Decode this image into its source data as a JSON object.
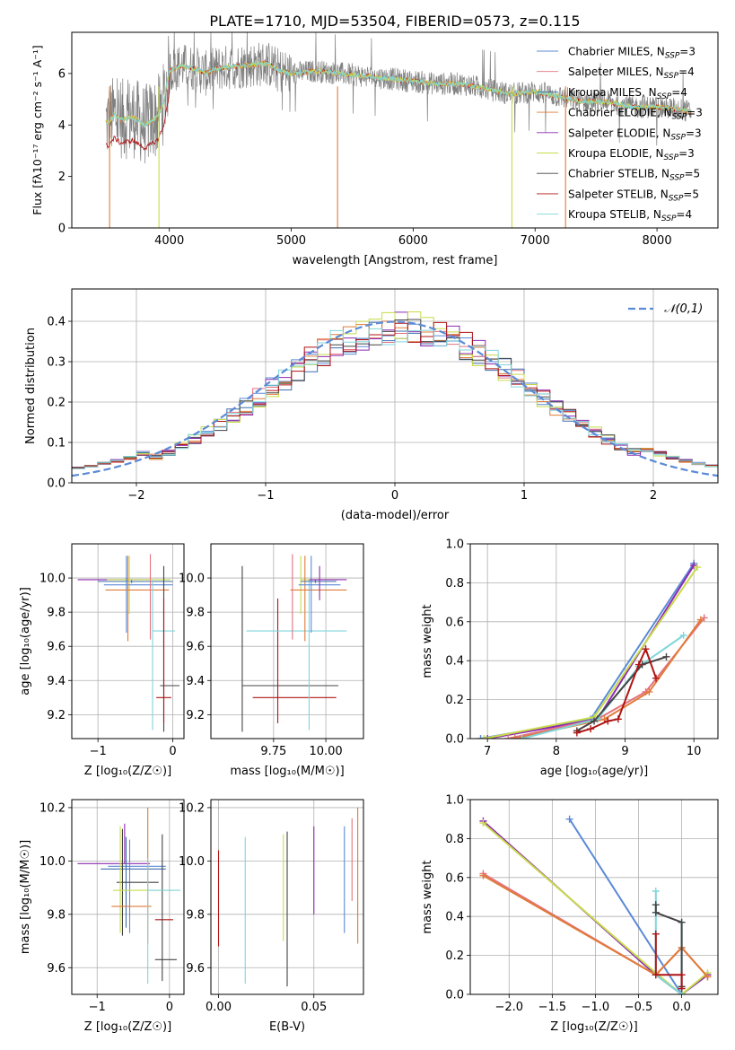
{
  "title": "PLATE=1710, MJD=53504, FIBERID=0573, z=0.115",
  "colors": {
    "Chabrier MILES": "#5b8ad6",
    "Salpeter MILES": "#e5737f",
    "Kroupa MILES": "#3e6fb0",
    "Chabrier ELODIE": "#e07b39",
    "Salpeter ELODIE": "#8e2bb0",
    "Kroupa ELODIE": "#c8dc4a",
    "Chabrier STELIB": "#444444",
    "Salpeter STELIB": "#b01414",
    "Kroupa STELIB": "#7fd6dc"
  },
  "chart_data": [
    {
      "id": "spectrum",
      "type": "line",
      "xlabel": "wavelength [Angstrom, rest frame]",
      "ylabel": "Flux [fλ10⁻¹⁷ erg cm⁻² s⁻¹ A⁻¹]",
      "xlim": [
        3200,
        8500
      ],
      "ylim": [
        0,
        7.6
      ],
      "xticks": [
        4000,
        5000,
        6000,
        7000,
        8000
      ],
      "yticks": [
        0,
        2,
        4,
        6
      ],
      "grid": false,
      "legend": "top-right",
      "series": [
        {
          "name": "Chabrier MILES, N",
          "sub": "SSP",
          "suffix": "=3"
        },
        {
          "name": "Salpeter MILES, N",
          "sub": "SSP",
          "suffix": "=4"
        },
        {
          "name": "Kroupa MILES, N",
          "sub": "SSP",
          "suffix": "=4"
        },
        {
          "name": "Chabrier ELODIE, N",
          "sub": "SSP",
          "suffix": "=3"
        },
        {
          "name": "Salpeter ELODIE, N",
          "sub": "SSP",
          "suffix": "=3"
        },
        {
          "name": "Kroupa ELODIE, N",
          "sub": "SSP",
          "suffix": "=3"
        },
        {
          "name": "Chabrier STELIB, N",
          "sub": "SSP",
          "suffix": "=5"
        },
        {
          "name": "Salpeter STELIB, N",
          "sub": "SSP",
          "suffix": "=5"
        },
        {
          "name": "Kroupa STELIB, N",
          "sub": "SSP",
          "suffix": "=4"
        }
      ],
      "model_envelope": [
        [
          3500,
          4.1
        ],
        [
          3550,
          4.4
        ],
        [
          3600,
          4.2
        ],
        [
          3700,
          4.3
        ],
        [
          3800,
          4.0
        ],
        [
          3900,
          4.3
        ],
        [
          3950,
          4.8
        ],
        [
          4000,
          6.1
        ],
        [
          4100,
          6.3
        ],
        [
          4200,
          6.2
        ],
        [
          4300,
          6.0
        ],
        [
          4400,
          6.2
        ],
        [
          4600,
          6.3
        ],
        [
          4800,
          6.4
        ],
        [
          4900,
          6.1
        ],
        [
          5000,
          6.0
        ],
        [
          5200,
          6.1
        ],
        [
          5400,
          6.0
        ],
        [
          5600,
          5.9
        ],
        [
          5800,
          5.8
        ],
        [
          6000,
          5.7
        ],
        [
          6200,
          5.6
        ],
        [
          6400,
          5.6
        ],
        [
          6600,
          5.4
        ],
        [
          6800,
          5.2
        ],
        [
          7000,
          5.3
        ],
        [
          7200,
          5.1
        ],
        [
          7400,
          4.9
        ],
        [
          7600,
          4.9
        ],
        [
          7800,
          4.7
        ],
        [
          8000,
          4.7
        ],
        [
          8200,
          4.6
        ],
        [
          8280,
          4.5
        ]
      ]
    },
    {
      "id": "residuals",
      "type": "histogram",
      "xlabel": "(data-model)/error",
      "ylabel": "Normed distribution",
      "xlim": [
        -2.5,
        2.5
      ],
      "ylim": [
        0,
        0.48
      ],
      "xticks": [
        -2,
        -1,
        0,
        1,
        2
      ],
      "yticks": [
        0.0,
        0.1,
        0.2,
        0.3,
        0.4
      ],
      "grid": true,
      "legend": "top-right",
      "legend_label": "𝒩(0,1)",
      "bin_width": 0.1,
      "reference_curve": "normal(0,1)"
    },
    {
      "id": "age-vs-Z",
      "type": "errorbar",
      "xlabel": "Z [log₁₀(Z/Z☉)]",
      "ylabel": "age  [log₁₀(age/yr)]",
      "xlim": [
        -1.35,
        0.15
      ],
      "ylim": [
        9.06,
        10.2
      ],
      "xticks": [
        -1,
        0
      ],
      "yticks": [
        9.2,
        9.4,
        9.6,
        9.8,
        10.0
      ],
      "grid": true,
      "points": [
        {
          "model": "Salpeter ELODIE",
          "x": -0.62,
          "xerr": [
            0.65,
            0.3
          ],
          "y": 9.99,
          "yerr": [
            0.01,
            0.01
          ]
        },
        {
          "model": "Kroupa MILES",
          "x": -0.55,
          "xerr": [
            0.45,
            0.55
          ],
          "y": 9.98,
          "yerr": [
            0.01,
            0.01
          ]
        },
        {
          "model": "Kroupa ELODIE",
          "x": -0.58,
          "xerr": [
            0.3,
            0.55
          ],
          "y": 9.99,
          "yerr": [
            0.2,
            0.14
          ]
        },
        {
          "model": "Chabrier MILES",
          "x": -0.62,
          "xerr": [
            0.3,
            0.62
          ],
          "y": 9.96,
          "yerr": [
            0.28,
            0.17
          ]
        },
        {
          "model": "Chabrier ELODIE",
          "x": -0.6,
          "xerr": [
            0.3,
            0.55
          ],
          "y": 9.93,
          "yerr": [
            0.3,
            0.2
          ]
        },
        {
          "model": "Kroupa STELIB",
          "x": -0.27,
          "xerr": [
            0.0,
            0.3
          ],
          "y": 9.69,
          "yerr": [
            0.58,
            0.3
          ]
        },
        {
          "model": "Chabrier STELIB",
          "x": -0.12,
          "xerr": [
            0.05,
            0.21
          ],
          "y": 9.37,
          "yerr": [
            0.27,
            0.7
          ]
        },
        {
          "model": "Salpeter STELIB",
          "x": -0.12,
          "xerr": [
            0.1,
            0.1
          ],
          "y": 9.3,
          "yerr": [
            0.15,
            0.58
          ]
        },
        {
          "model": "Salpeter MILES",
          "x": -0.3,
          "xerr": [
            0.0,
            0.0
          ],
          "y": 9.99,
          "yerr": [
            0.35,
            0.15
          ]
        }
      ]
    },
    {
      "id": "age-vs-mass",
      "type": "errorbar",
      "xlabel": "mass [log₁₀(M/M☉)]",
      "ylabel": "",
      "xlim": [
        9.45,
        10.18
      ],
      "ylim": [
        9.06,
        10.2
      ],
      "xticks": [
        9.75,
        10.0
      ],
      "xticklabels": [
        "9.75",
        "10.00"
      ],
      "yticks": [
        9.2,
        9.4,
        9.6,
        9.8,
        10.0
      ],
      "grid": true,
      "points": [
        {
          "model": "Chabrier STELIB",
          "x": 9.6,
          "xerr": [
            0.0,
            0.46
          ],
          "y": 9.37,
          "yerr": [
            0.27,
            0.7
          ]
        },
        {
          "model": "Salpeter STELIB",
          "x": 9.77,
          "xerr": [
            0.12,
            0.28
          ],
          "y": 9.3,
          "yerr": [
            0.15,
            0.58
          ]
        },
        {
          "model": "Kroupa STELIB",
          "x": 9.92,
          "xerr": [
            0.3,
            0.18
          ],
          "y": 9.69,
          "yerr": [
            0.58,
            0.3
          ]
        },
        {
          "model": "Salpeter MILES",
          "x": 9.84,
          "xerr": [
            0.0,
            0.0
          ],
          "y": 9.99,
          "yerr": [
            0.35,
            0.15
          ]
        },
        {
          "model": "Kroupa ELODIE",
          "x": 9.88,
          "xerr": [
            0.0,
            0.18
          ],
          "y": 9.99,
          "yerr": [
            0.2,
            0.14
          ]
        },
        {
          "model": "Chabrier ELODIE",
          "x": 9.9,
          "xerr": [
            0.07,
            0.2
          ],
          "y": 9.93,
          "yerr": [
            0.3,
            0.2
          ]
        },
        {
          "model": "Chabrier MILES",
          "x": 9.93,
          "xerr": [
            0.06,
            0.14
          ],
          "y": 9.96,
          "yerr": [
            0.28,
            0.17
          ]
        },
        {
          "model": "Kroupa MILES",
          "x": 9.95,
          "xerr": [
            0.07,
            0.1
          ],
          "y": 9.98,
          "yerr": [
            0.01,
            0.01
          ]
        },
        {
          "model": "Salpeter ELODIE",
          "x": 9.97,
          "xerr": [
            0.05,
            0.13
          ],
          "y": 9.99,
          "yerr": [
            0.12,
            0.08
          ]
        }
      ]
    },
    {
      "id": "weight-vs-age",
      "type": "line",
      "xlabel": "age  [log₁₀(age/yr)]",
      "ylabel": "mass weight",
      "xlim": [
        6.75,
        10.35
      ],
      "ylim": [
        0,
        1.0
      ],
      "xticks": [
        7,
        8,
        9,
        10
      ],
      "yticks": [
        0.0,
        0.2,
        0.4,
        0.6,
        0.8,
        1.0
      ],
      "grid": true,
      "series": [
        {
          "model": "Chabrier MILES",
          "x": [
            6.9,
            8.5,
            10.0
          ],
          "y": [
            0.0,
            0.1,
            0.9
          ]
        },
        {
          "model": "Salpeter ELODIE",
          "x": [
            7.0,
            8.6,
            10.0
          ],
          "y": [
            0.0,
            0.1,
            0.89
          ]
        },
        {
          "model": "Kroupa ELODIE",
          "x": [
            6.95,
            8.55,
            10.05
          ],
          "y": [
            0.0,
            0.11,
            0.88
          ]
        },
        {
          "model": "Salpeter MILES",
          "x": [
            7.3,
            8.6,
            9.3,
            10.15
          ],
          "y": [
            0.0,
            0.1,
            0.24,
            0.62
          ]
        },
        {
          "model": "Chabrier ELODIE",
          "x": [
            7.4,
            8.7,
            9.35,
            10.1
          ],
          "y": [
            0.0,
            0.1,
            0.24,
            0.61
          ]
        },
        {
          "model": "Kroupa STELIB",
          "x": [
            7.5,
            8.6,
            9.2,
            9.85
          ],
          "y": [
            0.0,
            0.1,
            0.37,
            0.53
          ]
        },
        {
          "model": "Chabrier STELIB",
          "x": [
            8.3,
            8.55,
            9.25,
            9.6
          ],
          "y": [
            0.04,
            0.09,
            0.38,
            0.42
          ]
        },
        {
          "model": "Salpeter STELIB",
          "x": [
            8.3,
            8.5,
            8.75,
            8.9,
            9.2,
            9.3,
            9.45
          ],
          "y": [
            0.03,
            0.05,
            0.09,
            0.1,
            0.38,
            0.46,
            0.31
          ]
        }
      ]
    },
    {
      "id": "mass-vs-Z",
      "type": "errorbar",
      "xlabel": "Z [log₁₀(Z/Z☉)]",
      "ylabel": "mass [log₁₀(M/M☉)]",
      "xlim": [
        -1.35,
        0.2
      ],
      "ylim": [
        9.5,
        10.23
      ],
      "xticks": [
        -1,
        0
      ],
      "yticks": [
        9.6,
        9.8,
        10.0,
        10.2
      ],
      "grid": true,
      "points": [
        {
          "model": "Salpeter ELODIE",
          "x": -0.62,
          "xerr": [
            0.65,
            0.35
          ],
          "y": 9.99,
          "yerr": [
            0.0,
            0.15
          ]
        },
        {
          "model": "Chabrier MILES",
          "x": -0.55,
          "xerr": [
            0.3,
            0.5
          ],
          "y": 9.98,
          "yerr": [
            0.25,
            0.1
          ]
        },
        {
          "model": "Kroupa MILES",
          "x": -0.6,
          "xerr": [
            0.35,
            0.55
          ],
          "y": 9.97,
          "yerr": [
            0.22,
            0.12
          ]
        },
        {
          "model": "Chabrier STELIB",
          "x": -0.65,
          "xerr": [
            0.08,
            0.5
          ],
          "y": 9.92,
          "yerr": [
            0.2,
            0.2
          ]
        },
        {
          "model": "Kroupa ELODIE",
          "x": -0.68,
          "xerr": [
            0.1,
            0.75
          ],
          "y": 9.89,
          "yerr": [
            0.16,
            0.24
          ]
        },
        {
          "model": "Chabrier ELODIE",
          "x": -0.3,
          "xerr": [
            0.5,
            0.05
          ],
          "y": 9.83,
          "yerr": [
            0.14,
            0.37
          ]
        },
        {
          "model": "Salpeter STELIB",
          "x": -0.2,
          "xerr": [
            0.0,
            0.25
          ],
          "y": 9.78,
          "yerr": [
            0.0,
            0.0
          ]
        },
        {
          "model": "Chabrier STELIB",
          "x": -0.1,
          "xerr": [
            0.1,
            0.2
          ],
          "y": 9.63,
          "yerr": [
            0.08,
            0.47
          ]
        },
        {
          "model": "Kroupa STELIB",
          "x": -0.3,
          "xerr": [
            0.0,
            0.45
          ],
          "y": 9.89,
          "yerr": [
            0.35,
            0.12
          ]
        }
      ]
    },
    {
      "id": "mass-vs-EBV",
      "type": "errorbar",
      "xlabel": "E(B-V)",
      "ylabel": "",
      "xlim": [
        -0.004,
        0.076
      ],
      "ylim": [
        9.5,
        10.23
      ],
      "xticks": [
        0.0,
        0.05
      ],
      "xticklabels": [
        "0.00",
        "0.05"
      ],
      "yticks": [
        9.6,
        9.8,
        10.0,
        10.2
      ],
      "grid": true,
      "points": [
        {
          "model": "Salpeter STELIB",
          "x": 0.0,
          "y": 9.86,
          "yerr": [
            0.18,
            0.18
          ]
        },
        {
          "model": "Kroupa STELIB",
          "x": 0.014,
          "y": 9.82,
          "yerr": [
            0.28,
            0.27
          ]
        },
        {
          "model": "Kroupa ELODIE",
          "x": 0.034,
          "y": 9.7,
          "yerr": [
            0.0,
            0.4
          ]
        },
        {
          "model": "Chabrier STELIB",
          "x": 0.036,
          "y": 9.82,
          "yerr": [
            0.29,
            0.29
          ]
        },
        {
          "model": "Salpeter ELODIE",
          "x": 0.05,
          "y": 9.97,
          "yerr": [
            0.17,
            0.16
          ]
        },
        {
          "model": "Chabrier MILES",
          "x": 0.066,
          "y": 9.93,
          "yerr": [
            0.2,
            0.2
          ]
        },
        {
          "model": "Salpeter MILES",
          "x": 0.07,
          "y": 10.0,
          "yerr": [
            0.15,
            0.16
          ]
        },
        {
          "model": "Chabrier ELODIE",
          "x": 0.073,
          "y": 9.95,
          "yerr": [
            0.26,
            0.25
          ]
        }
      ]
    },
    {
      "id": "weight-vs-Z",
      "type": "line",
      "xlabel": "Z [log₁₀(Z/Z☉)]",
      "ylabel": "mass weight",
      "xlim": [
        -2.45,
        0.42
      ],
      "ylim": [
        0,
        1.0
      ],
      "xticks": [
        -2.0,
        -1.5,
        -1.0,
        -0.5,
        0.0
      ],
      "xticklabels": [
        "−2.0",
        "−1.5",
        "−1.0",
        "−0.5",
        "0.0"
      ],
      "yticks": [
        0.0,
        0.2,
        0.4,
        0.6,
        0.8,
        1.0
      ],
      "grid": true,
      "series": [
        {
          "model": "Chabrier MILES",
          "x": [
            -1.3,
            0.0,
            0.3
          ],
          "y": [
            0.9,
            0.0,
            0.1
          ]
        },
        {
          "model": "Salpeter ELODIE",
          "x": [
            -2.3,
            -0.3,
            0.0,
            0.3
          ],
          "y": [
            0.89,
            0.1,
            0.0,
            0.1
          ]
        },
        {
          "model": "Kroupa ELODIE",
          "x": [
            -2.3,
            -0.3,
            0.0,
            0.3
          ],
          "y": [
            0.88,
            0.11,
            0.0,
            0.11
          ]
        },
        {
          "model": "Salpeter MILES",
          "x": [
            -2.3,
            -0.3,
            0.0,
            0.3
          ],
          "y": [
            0.62,
            0.1,
            0.24,
            0.09
          ]
        },
        {
          "model": "Chabrier ELODIE",
          "x": [
            -2.3,
            -0.3,
            0.0,
            0.3
          ],
          "y": [
            0.61,
            0.1,
            0.24,
            0.09
          ]
        },
        {
          "model": "Kroupa STELIB",
          "x": [
            -0.3,
            -0.3,
            0.0,
            0.0
          ],
          "y": [
            0.53,
            0.1,
            0.0,
            0.37
          ]
        },
        {
          "model": "Chabrier STELIB",
          "x": [
            -0.3,
            -0.3,
            0.0,
            0.0
          ],
          "y": [
            0.46,
            0.42,
            0.37,
            0.04
          ]
        },
        {
          "model": "Salpeter STELIB",
          "x": [
            -0.3,
            -0.3,
            0.0,
            0.0
          ],
          "y": [
            0.31,
            0.1,
            0.1,
            0.03
          ]
        }
      ]
    }
  ]
}
